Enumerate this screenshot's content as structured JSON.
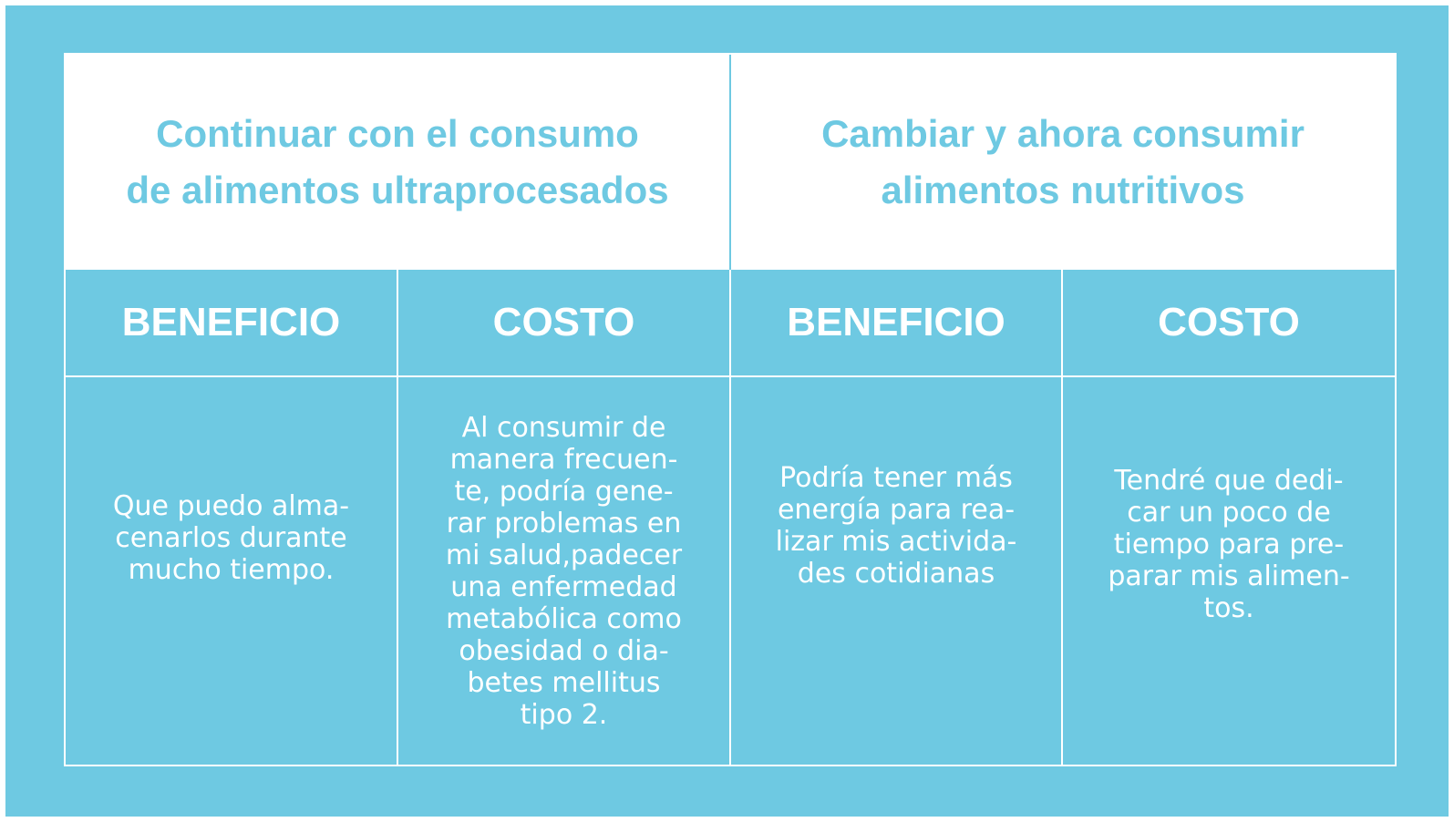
{
  "options": {
    "left": {
      "title": "Continuar con el consumo\nde alimentos ultraprocesados",
      "benefit_header": "BENEFICIO",
      "cost_header": "COSTO",
      "benefit": "Que puedo alma-\ncenarlos durante\nmucho tiempo.",
      "cost": "Al consumir de\nmanera frecuen-\nte, podría gene-\nrar problemas en\nmi salud,padecer\nuna enfermedad\nmetabólica como\nobesidad o dia-\nbetes mellitus\ntipo 2."
    },
    "right": {
      "title": "Cambiar y ahora consumir\nalimentos nutritivos",
      "benefit_header": "BENEFICIO",
      "cost_header": "COSTO",
      "benefit": "Podría tener más\nenergía para rea-\nlizar mis activida-\ndes cotidianas",
      "cost": "Tendré que dedi-\ncar un poco de\ntiempo para pre-\nparar mis alimen-\ntos."
    }
  },
  "colors": {
    "background": "#6ec9e2",
    "header_text": "#6ec9e2",
    "cell_text": "#ffffff"
  }
}
